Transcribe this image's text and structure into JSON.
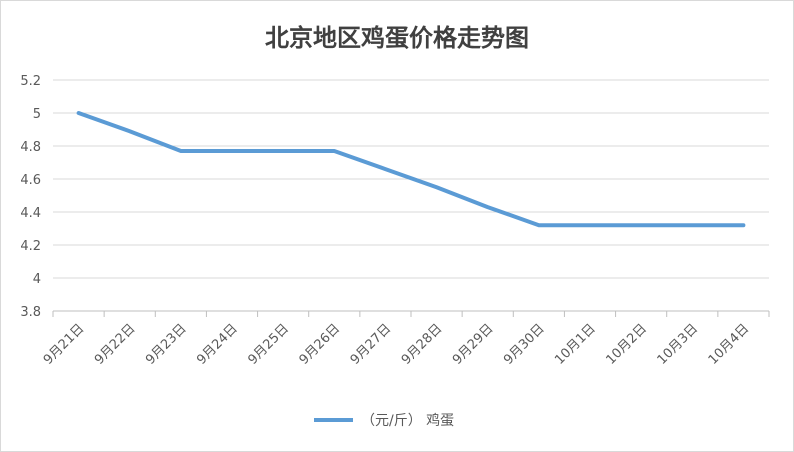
{
  "chart_data": {
    "type": "line",
    "title": "北京地区鸡蛋价格走势图",
    "xlabel": "",
    "ylabel": "",
    "categories": [
      "9月21日",
      "9月22日",
      "9月23日",
      "9月24日",
      "9月25日",
      "9月26日",
      "9月27日",
      "9月28日",
      "9月29日",
      "9月30日",
      "10月1日",
      "10月2日",
      "10月3日",
      "10月4日"
    ],
    "series": [
      {
        "name": "（元/斤） 鸡蛋",
        "values": [
          5.0,
          4.89,
          4.77,
          4.77,
          4.77,
          4.77,
          4.66,
          4.55,
          4.43,
          4.32,
          4.32,
          4.32,
          4.32,
          4.32
        ]
      }
    ],
    "ylim": [
      3.8,
      5.2
    ],
    "yticks": [
      "3.8",
      "4",
      "4.2",
      "4.4",
      "4.6",
      "4.8",
      "5",
      "5.2"
    ],
    "grid": true,
    "legend_position": "bottom",
    "colors": {
      "series": "#5B9BD5",
      "grid": "#d9d9d9",
      "axis": "#bfbfbf",
      "text": "#595959",
      "title": "#404040"
    }
  }
}
